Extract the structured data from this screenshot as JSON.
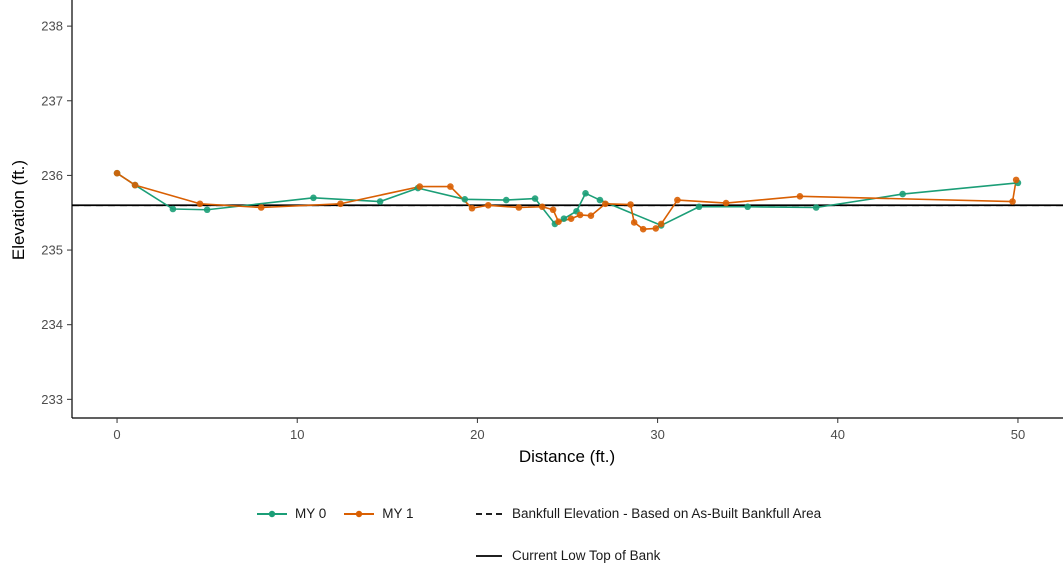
{
  "chart_data": {
    "type": "line",
    "xlabel": "Distance (ft.)",
    "ylabel": "Elevation (ft.)",
    "xlim": [
      -2.5,
      52.5
    ],
    "ylim": [
      232.75,
      238.35
    ],
    "x_ticks": [
      0,
      10,
      20,
      30,
      40,
      50
    ],
    "y_ticks": [
      233,
      234,
      235,
      236,
      237,
      238
    ],
    "grid": false,
    "legend_position": "bottom",
    "series": [
      {
        "name": "MY 0",
        "color": "#1b9e77",
        "points": [
          [
            0,
            236.03
          ],
          [
            1.0,
            235.87
          ],
          [
            3.1,
            235.55
          ],
          [
            5.0,
            235.54
          ],
          [
            10.9,
            235.7
          ],
          [
            14.6,
            235.65
          ],
          [
            16.7,
            235.83
          ],
          [
            19.3,
            235.68
          ],
          [
            21.6,
            235.67
          ],
          [
            23.2,
            235.69
          ],
          [
            24.3,
            235.35
          ],
          [
            24.8,
            235.42
          ],
          [
            25.5,
            235.52
          ],
          [
            26.0,
            235.76
          ],
          [
            26.8,
            235.67
          ],
          [
            30.2,
            235.33
          ],
          [
            32.3,
            235.58
          ],
          [
            35.0,
            235.58
          ],
          [
            38.8,
            235.57
          ],
          [
            43.6,
            235.75
          ],
          [
            50.0,
            235.9
          ]
        ]
      },
      {
        "name": "MY 1",
        "color": "#d95f02",
        "points": [
          [
            0,
            236.03
          ],
          [
            1.0,
            235.87
          ],
          [
            4.6,
            235.62
          ],
          [
            8.0,
            235.57
          ],
          [
            12.4,
            235.62
          ],
          [
            16.8,
            235.85
          ],
          [
            18.5,
            235.85
          ],
          [
            19.7,
            235.56
          ],
          [
            20.6,
            235.6
          ],
          [
            22.3,
            235.57
          ],
          [
            23.6,
            235.58
          ],
          [
            24.2,
            235.54
          ],
          [
            24.5,
            235.38
          ],
          [
            25.2,
            235.42
          ],
          [
            25.7,
            235.47
          ],
          [
            26.3,
            235.46
          ],
          [
            27.1,
            235.62
          ],
          [
            28.5,
            235.61
          ],
          [
            28.7,
            235.37
          ],
          [
            29.2,
            235.28
          ],
          [
            29.9,
            235.29
          ],
          [
            30.2,
            235.35
          ],
          [
            31.1,
            235.67
          ],
          [
            33.8,
            235.63
          ],
          [
            37.9,
            235.72
          ],
          [
            49.7,
            235.65
          ],
          [
            49.9,
            235.94
          ]
        ]
      }
    ],
    "reference_lines": [
      {
        "name": "Bankfull Elevation - Based on As-Built Bankfull Area",
        "y": 235.6,
        "style": "dashed",
        "color": "#000000"
      },
      {
        "name": "Current Low Top of Bank",
        "y": 235.6,
        "style": "solid",
        "color": "#000000"
      }
    ]
  }
}
